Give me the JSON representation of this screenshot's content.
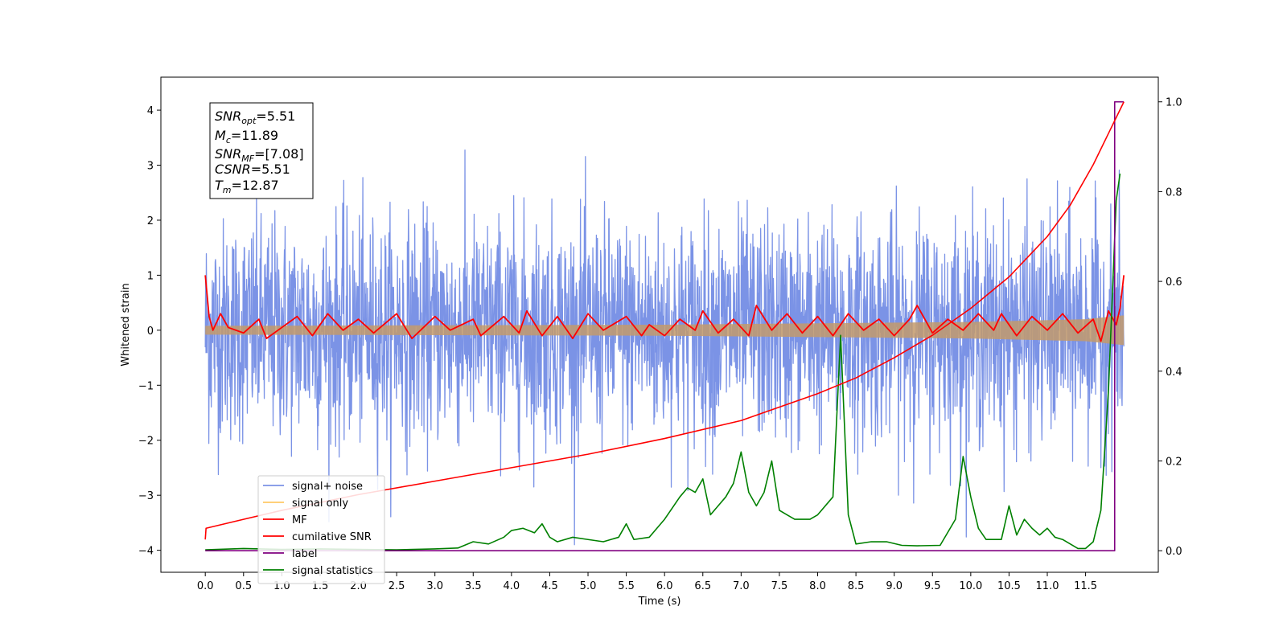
{
  "chart_data": {
    "type": "line",
    "xlabel": "Time (s)",
    "ylabel_left": "Whitened strain",
    "xlim": [
      -0.58,
      12.45
    ],
    "ylim_left": [
      -4.4,
      4.6
    ],
    "ylim_right": [
      -0.048,
      1.055
    ],
    "x_ticks": [
      "0.0",
      "0.5",
      "1.0",
      "1.5",
      "2.0",
      "2.5",
      "3.0",
      "3.5",
      "4.0",
      "4.5",
      "5.0",
      "5.5",
      "6.0",
      "6.5",
      "7.0",
      "7.5",
      "8.0",
      "8.5",
      "9.0",
      "9.5",
      "10.0",
      "10.5",
      "11.0",
      "11.5"
    ],
    "y_ticks_left": [
      "4",
      "3",
      "2",
      "1",
      "0",
      "−1",
      "−2",
      "−3",
      "−4"
    ],
    "y_ticks_right": [
      "1.0",
      "0.8",
      "0.6",
      "0.4",
      "0.2",
      "0.0"
    ],
    "duration": 12.0,
    "info_box": {
      "snr_opt": {
        "base": "SNR",
        "sub": "opt",
        "value": "=5.51"
      },
      "mc": {
        "base": "M",
        "sub": "c",
        "value": "=11.89"
      },
      "snr_mf": {
        "base": "SNR",
        "sub": "MF",
        "value": "=[7.08]"
      },
      "csnr": {
        "base": "CSNR",
        "sub": "",
        "value": "=5.51"
      },
      "tm": {
        "base": "T",
        "sub": "m",
        "value": "=12.87"
      }
    },
    "legend": {
      "placement": "lower-left",
      "entries": [
        {
          "label": "signal+ noise",
          "color": "#7b93e6"
        },
        {
          "label": "signal only",
          "color": "#ffc966"
        },
        {
          "label": "MF",
          "color": "#ff0000"
        },
        {
          "label": "cumilative SNR",
          "color": "#ff0000"
        },
        {
          "label": "label",
          "color": "#800080"
        },
        {
          "label": "signal statistics",
          "color": "#008000"
        }
      ]
    },
    "series": [
      {
        "name": "signal+ noise",
        "axis": "left",
        "color": "#7b93e6",
        "description_points": "dense noise, sampled",
        "amplitude_sigma": 1.0
      },
      {
        "name": "signal only",
        "axis": "left",
        "color": "#ffc966",
        "envelope": [
          [
            0.0,
            0.08
          ],
          [
            6.0,
            0.1
          ],
          [
            10.0,
            0.15
          ],
          [
            11.5,
            0.2
          ],
          [
            12.0,
            0.27
          ]
        ]
      },
      {
        "name": "MF",
        "axis": "left",
        "color": "#ff0000",
        "points": [
          [
            0.0,
            1.0
          ],
          [
            0.05,
            0.25
          ],
          [
            0.1,
            0.0
          ],
          [
            0.2,
            0.3
          ],
          [
            0.3,
            0.05
          ],
          [
            0.5,
            -0.05
          ],
          [
            0.7,
            0.2
          ],
          [
            0.8,
            -0.15
          ],
          [
            1.0,
            0.05
          ],
          [
            1.2,
            0.25
          ],
          [
            1.4,
            -0.1
          ],
          [
            1.6,
            0.3
          ],
          [
            1.8,
            0.0
          ],
          [
            2.0,
            0.2
          ],
          [
            2.2,
            -0.05
          ],
          [
            2.5,
            0.3
          ],
          [
            2.7,
            -0.15
          ],
          [
            3.0,
            0.25
          ],
          [
            3.2,
            0.0
          ],
          [
            3.5,
            0.2
          ],
          [
            3.6,
            -0.1
          ],
          [
            3.9,
            0.25
          ],
          [
            4.1,
            -0.05
          ],
          [
            4.2,
            0.35
          ],
          [
            4.4,
            -0.1
          ],
          [
            4.6,
            0.25
          ],
          [
            4.8,
            -0.15
          ],
          [
            5.0,
            0.3
          ],
          [
            5.2,
            0.0
          ],
          [
            5.5,
            0.25
          ],
          [
            5.7,
            -0.1
          ],
          [
            5.8,
            0.1
          ],
          [
            6.0,
            -0.1
          ],
          [
            6.2,
            0.2
          ],
          [
            6.4,
            0.0
          ],
          [
            6.5,
            0.35
          ],
          [
            6.7,
            -0.05
          ],
          [
            6.9,
            0.2
          ],
          [
            7.1,
            -0.1
          ],
          [
            7.2,
            0.45
          ],
          [
            7.4,
            0.0
          ],
          [
            7.6,
            0.3
          ],
          [
            7.8,
            -0.05
          ],
          [
            8.0,
            0.25
          ],
          [
            8.2,
            -0.1
          ],
          [
            8.4,
            0.3
          ],
          [
            8.6,
            0.0
          ],
          [
            8.8,
            0.2
          ],
          [
            9.0,
            -0.1
          ],
          [
            9.2,
            0.2
          ],
          [
            9.3,
            0.45
          ],
          [
            9.5,
            -0.05
          ],
          [
            9.7,
            0.2
          ],
          [
            9.9,
            0.0
          ],
          [
            10.1,
            0.3
          ],
          [
            10.3,
            0.0
          ],
          [
            10.4,
            0.3
          ],
          [
            10.6,
            -0.1
          ],
          [
            10.8,
            0.25
          ],
          [
            11.0,
            0.0
          ],
          [
            11.2,
            0.3
          ],
          [
            11.4,
            -0.05
          ],
          [
            11.6,
            0.2
          ],
          [
            11.7,
            -0.2
          ],
          [
            11.8,
            0.35
          ],
          [
            11.9,
            0.1
          ],
          [
            11.95,
            0.4
          ],
          [
            12.0,
            1.0
          ]
        ]
      },
      {
        "name": "cumilative SNR",
        "axis": "right",
        "color": "#ff0000",
        "points": [
          [
            0.0,
            0.025
          ],
          [
            0.01,
            0.05
          ],
          [
            0.5,
            0.07
          ],
          [
            1.0,
            0.09
          ],
          [
            2.0,
            0.125
          ],
          [
            3.0,
            0.155
          ],
          [
            4.0,
            0.185
          ],
          [
            5.0,
            0.215
          ],
          [
            6.0,
            0.25
          ],
          [
            7.0,
            0.29
          ],
          [
            8.0,
            0.35
          ],
          [
            8.5,
            0.385
          ],
          [
            9.0,
            0.43
          ],
          [
            9.5,
            0.48
          ],
          [
            10.0,
            0.54
          ],
          [
            10.5,
            0.61
          ],
          [
            11.0,
            0.7
          ],
          [
            11.3,
            0.77
          ],
          [
            11.6,
            0.86
          ],
          [
            11.8,
            0.93
          ],
          [
            12.0,
            1.0
          ]
        ]
      },
      {
        "name": "label",
        "axis": "right",
        "color": "#800080",
        "points": [
          [
            0.0,
            0.0
          ],
          [
            11.73,
            0.0
          ],
          [
            11.73,
            0.0
          ],
          [
            11.88,
            0.0
          ],
          [
            11.88,
            1.0
          ],
          [
            12.0,
            1.0
          ]
        ]
      },
      {
        "name": "signal statistics",
        "axis": "right",
        "color": "#008000",
        "points": [
          [
            0.0,
            0.002
          ],
          [
            0.5,
            0.005
          ],
          [
            1.0,
            0.003
          ],
          [
            1.5,
            0.004
          ],
          [
            2.0,
            0.003
          ],
          [
            2.5,
            0.002
          ],
          [
            3.0,
            0.004
          ],
          [
            3.3,
            0.006
          ],
          [
            3.5,
            0.02
          ],
          [
            3.7,
            0.015
          ],
          [
            3.9,
            0.03
          ],
          [
            4.0,
            0.045
          ],
          [
            4.15,
            0.05
          ],
          [
            4.3,
            0.04
          ],
          [
            4.4,
            0.06
          ],
          [
            4.5,
            0.03
          ],
          [
            4.6,
            0.02
          ],
          [
            4.8,
            0.03
          ],
          [
            5.0,
            0.025
          ],
          [
            5.2,
            0.02
          ],
          [
            5.4,
            0.03
          ],
          [
            5.5,
            0.06
          ],
          [
            5.6,
            0.025
          ],
          [
            5.8,
            0.03
          ],
          [
            5.9,
            0.05
          ],
          [
            6.0,
            0.07
          ],
          [
            6.2,
            0.12
          ],
          [
            6.3,
            0.14
          ],
          [
            6.4,
            0.13
          ],
          [
            6.5,
            0.16
          ],
          [
            6.6,
            0.08
          ],
          [
            6.8,
            0.12
          ],
          [
            6.9,
            0.15
          ],
          [
            7.0,
            0.22
          ],
          [
            7.1,
            0.13
          ],
          [
            7.2,
            0.1
          ],
          [
            7.3,
            0.13
          ],
          [
            7.4,
            0.2
          ],
          [
            7.5,
            0.09
          ],
          [
            7.6,
            0.08
          ],
          [
            7.7,
            0.07
          ],
          [
            7.9,
            0.07
          ],
          [
            8.0,
            0.08
          ],
          [
            8.2,
            0.12
          ],
          [
            8.3,
            0.48
          ],
          [
            8.4,
            0.08
          ],
          [
            8.5,
            0.015
          ],
          [
            8.7,
            0.02
          ],
          [
            8.9,
            0.02
          ],
          [
            9.1,
            0.012
          ],
          [
            9.3,
            0.011
          ],
          [
            9.6,
            0.012
          ],
          [
            9.8,
            0.07
          ],
          [
            9.9,
            0.21
          ],
          [
            10.0,
            0.12
          ],
          [
            10.1,
            0.05
          ],
          [
            10.2,
            0.025
          ],
          [
            10.4,
            0.025
          ],
          [
            10.5,
            0.1
          ],
          [
            10.6,
            0.035
          ],
          [
            10.7,
            0.07
          ],
          [
            10.8,
            0.05
          ],
          [
            10.9,
            0.035
          ],
          [
            11.0,
            0.05
          ],
          [
            11.1,
            0.03
          ],
          [
            11.2,
            0.025
          ],
          [
            11.4,
            0.005
          ],
          [
            11.5,
            0.005
          ],
          [
            11.6,
            0.02
          ],
          [
            11.7,
            0.09
          ],
          [
            11.8,
            0.36
          ],
          [
            11.9,
            0.78
          ],
          [
            11.95,
            0.84
          ]
        ]
      }
    ]
  }
}
